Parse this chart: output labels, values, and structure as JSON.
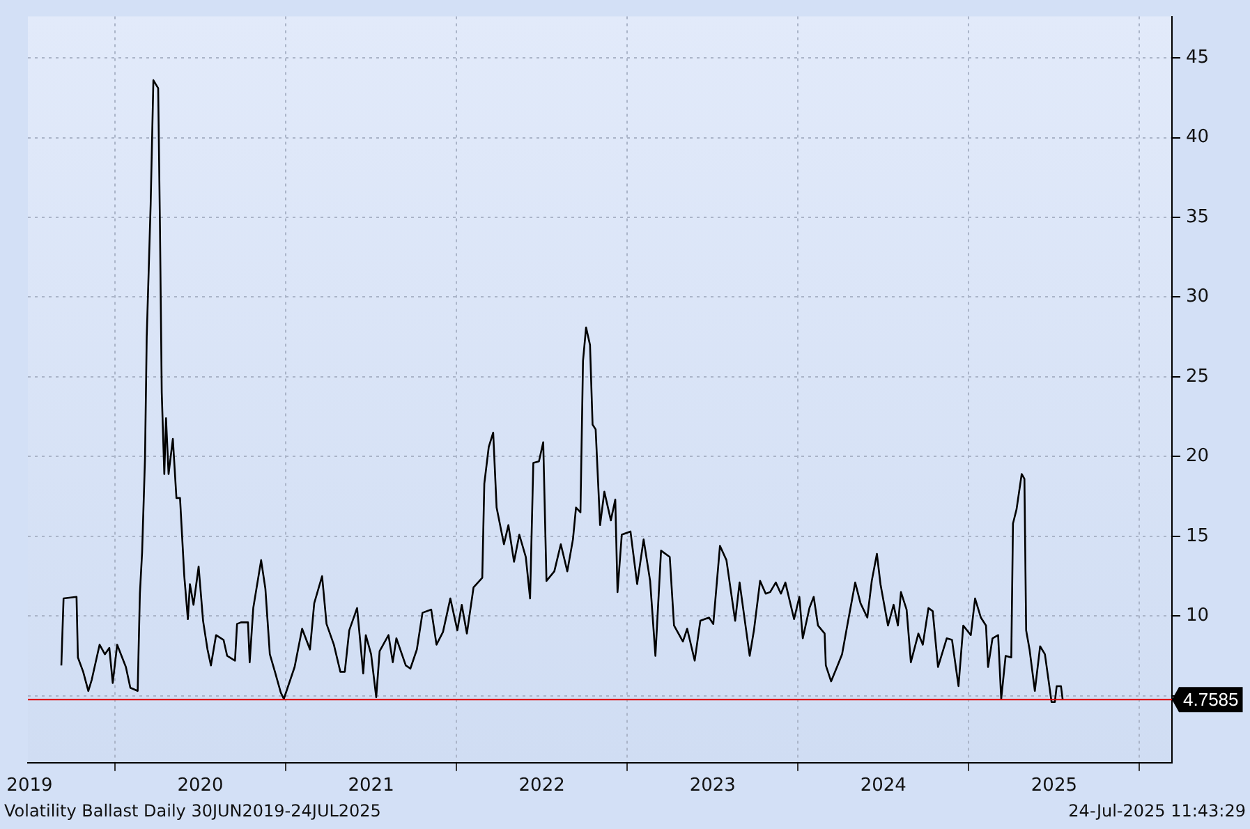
{
  "chart_data": {
    "type": "line",
    "xlim": [
      2019.49,
      2026.19
    ],
    "xticks": [
      {
        "value": 2019.5,
        "label": "2019"
      },
      {
        "value": 2020,
        "label": null
      },
      {
        "value": 2020.5,
        "label": "2020"
      },
      {
        "value": 2021,
        "label": null
      },
      {
        "value": 2021.5,
        "label": "2021"
      },
      {
        "value": 2022,
        "label": null
      },
      {
        "value": 2022.5,
        "label": "2022"
      },
      {
        "value": 2023,
        "label": null
      },
      {
        "value": 2023.5,
        "label": "2023"
      },
      {
        "value": 2024,
        "label": null
      },
      {
        "value": 2024.5,
        "label": "2024"
      },
      {
        "value": 2025,
        "label": null
      },
      {
        "value": 2025.5,
        "label": "2025"
      },
      {
        "value": 2026,
        "label": null
      }
    ],
    "ylim": [
      0.8,
      47.6
    ],
    "yticks": [
      {
        "value": 5,
        "label": null
      },
      10,
      15,
      20,
      25,
      30,
      35,
      40,
      45
    ],
    "grid": true,
    "legend": false,
    "marker": "none",
    "line_style": "solid",
    "ref_lines": [
      {
        "axis": "y",
        "value": 4.7585,
        "label": "4.7585",
        "color": "#e00000"
      }
    ],
    "annotations": [
      "Volatility Ballast  Daily 30JUN2019-24JUL2025",
      "24-Jul-2025 11:43:29"
    ],
    "series": [
      {
        "color": "#000000",
        "x": [
          2019.686,
          2019.699,
          2019.775,
          2019.783,
          2019.814,
          2019.844,
          2019.864,
          2019.91,
          2019.941,
          2019.967,
          2019.987,
          2020.013,
          2020.064,
          2020.09,
          2020.133,
          2020.146,
          2020.159,
          2020.176,
          2020.186,
          2020.209,
          2020.225,
          2020.253,
          2020.263,
          2020.274,
          2020.289,
          2020.299,
          2020.314,
          2020.339,
          2020.36,
          2020.381,
          2020.406,
          2020.427,
          2020.439,
          2020.46,
          2020.49,
          2020.516,
          2020.542,
          2020.562,
          2020.592,
          2020.636,
          2020.657,
          2020.703,
          2020.715,
          2020.738,
          2020.779,
          2020.789,
          2020.81,
          2020.856,
          2020.881,
          2020.907,
          2020.937,
          2020.971,
          2020.989,
          2021.052,
          2021.096,
          2021.142,
          2021.167,
          2021.213,
          2021.239,
          2021.282,
          2021.32,
          2021.346,
          2021.372,
          2021.418,
          2021.454,
          2021.469,
          2021.5,
          2021.53,
          2021.55,
          2021.602,
          2021.627,
          2021.648,
          2021.703,
          2021.73,
          2021.768,
          2021.801,
          2021.852,
          2021.883,
          2021.921,
          2021.964,
          2022.005,
          2022.031,
          2022.061,
          2022.1,
          2022.151,
          2022.163,
          2022.189,
          2022.215,
          2022.235,
          2022.278,
          2022.304,
          2022.337,
          2022.368,
          2022.406,
          2022.431,
          2022.45,
          2022.483,
          2022.508,
          2022.527,
          2022.573,
          2022.611,
          2022.649,
          2022.682,
          2022.7,
          2022.726,
          2022.741,
          2022.759,
          2022.782,
          2022.797,
          2022.815,
          2022.841,
          2022.866,
          2022.904,
          2022.93,
          2022.943,
          2022.968,
          2023.019,
          2023.058,
          2023.096,
          2023.134,
          2023.165,
          2023.198,
          2023.249,
          2023.274,
          2023.326,
          2023.351,
          2023.395,
          2023.428,
          2023.479,
          2023.504,
          2023.543,
          2023.581,
          2023.632,
          2023.658,
          2023.717,
          2023.742,
          2023.778,
          2023.811,
          2023.837,
          2023.87,
          2023.9,
          2023.926,
          2023.977,
          2024.008,
          2024.028,
          2024.067,
          2024.092,
          2024.117,
          2024.156,
          2024.163,
          2024.194,
          2024.232,
          2024.258,
          2024.297,
          2024.335,
          2024.366,
          2024.406,
          2024.432,
          2024.462,
          2024.483,
          2024.527,
          2024.56,
          2024.585,
          2024.603,
          2024.636,
          2024.661,
          2024.705,
          2024.731,
          2024.764,
          2024.789,
          2024.82,
          2024.871,
          2024.902,
          2024.94,
          2024.968,
          2025.012,
          2025.037,
          2025.071,
          2025.101,
          2025.113,
          2025.139,
          2025.172,
          2025.19,
          2025.216,
          2025.249,
          2025.259,
          2025.28,
          2025.31,
          2025.326,
          2025.336,
          2025.356,
          2025.387,
          2025.418,
          2025.446,
          2025.485,
          2025.504,
          2025.515,
          2025.54,
          2025.55
        ],
        "values": [
          6.9,
          11.1,
          11.2,
          7.4,
          6.5,
          5.3,
          6.0,
          8.2,
          7.6,
          8.0,
          5.8,
          8.2,
          6.8,
          5.5,
          5.3,
          11.4,
          14.0,
          19.9,
          27.5,
          35.8,
          43.6,
          43.1,
          34.9,
          24.0,
          18.9,
          22.4,
          18.9,
          21.1,
          17.4,
          17.4,
          12.5,
          9.8,
          12.0,
          10.7,
          13.1,
          9.7,
          7.9,
          6.9,
          8.8,
          8.5,
          7.5,
          7.2,
          9.5,
          9.6,
          9.6,
          7.1,
          10.5,
          13.5,
          11.7,
          7.6,
          6.5,
          5.2,
          4.8,
          6.8,
          9.2,
          7.9,
          10.8,
          12.5,
          9.5,
          8.2,
          6.5,
          6.5,
          9.1,
          10.5,
          6.4,
          8.8,
          7.6,
          4.9,
          7.8,
          8.8,
          7.1,
          8.6,
          6.9,
          6.7,
          7.9,
          10.2,
          10.4,
          8.2,
          9.0,
          11.1,
          9.1,
          10.7,
          8.9,
          11.8,
          12.4,
          18.3,
          20.6,
          21.5,
          16.8,
          14.5,
          15.7,
          13.4,
          15.1,
          13.7,
          11.1,
          19.6,
          19.7,
          20.9,
          12.2,
          12.8,
          14.5,
          12.8,
          14.8,
          16.8,
          16.5,
          26.0,
          28.1,
          27.0,
          22.0,
          21.7,
          15.7,
          17.8,
          16.0,
          17.3,
          11.5,
          15.1,
          15.3,
          12.0,
          14.8,
          12.2,
          7.5,
          14.1,
          13.7,
          9.4,
          8.4,
          9.2,
          7.2,
          9.7,
          9.9,
          9.5,
          14.4,
          13.5,
          9.7,
          12.1,
          7.5,
          9.1,
          12.2,
          11.4,
          11.5,
          12.1,
          11.4,
          12.1,
          9.8,
          11.2,
          8.6,
          10.5,
          11.2,
          9.4,
          8.9,
          6.9,
          5.9,
          6.9,
          7.6,
          9.9,
          12.1,
          10.8,
          9.9,
          12.2,
          13.9,
          12.0,
          9.4,
          10.7,
          9.4,
          11.5,
          10.4,
          7.1,
          8.9,
          8.2,
          10.5,
          10.3,
          6.8,
          8.6,
          8.5,
          5.6,
          9.4,
          8.8,
          11.1,
          9.9,
          9.4,
          6.8,
          8.6,
          8.8,
          4.8,
          7.5,
          7.4,
          15.8,
          16.7,
          18.9,
          18.6,
          9.1,
          7.9,
          5.3,
          8.1,
          7.6,
          4.6,
          4.6,
          5.6,
          5.6,
          4.7585
        ]
      }
    ]
  }
}
